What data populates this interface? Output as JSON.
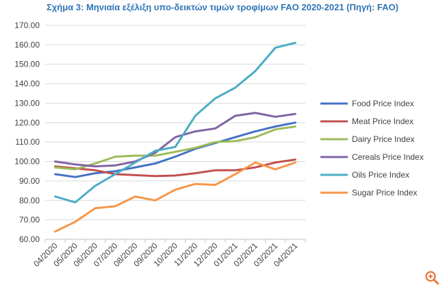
{
  "chart_data": {
    "type": "line",
    "title": "Σχήμα 3: Μηνιαία εξέλιξη υπο-δεικτών τιμών τροφίμων FAO 2020-2021 (Πηγή: FAO)",
    "xlabel": "",
    "ylabel": "",
    "ylim": [
      60,
      170
    ],
    "yticks": [
      "60.00",
      "70.00",
      "80.00",
      "90.00",
      "100.00",
      "110.00",
      "120.00",
      "130.00",
      "140.00",
      "150.00",
      "160.00",
      "170.00"
    ],
    "categories": [
      "04/2020",
      "05/2020",
      "06/2020",
      "07/2020",
      "08/2020",
      "09/2020",
      "10/2020",
      "11/2020",
      "12/2020",
      "01/2021",
      "02/2021",
      "03/2021",
      "04/2021"
    ],
    "grid": true,
    "legend_position": "right",
    "series": [
      {
        "name": "Food Price Index",
        "color": "#4472c4",
        "values": [
          93.5,
          92.0,
          94.0,
          95.0,
          97.0,
          99.0,
          102.5,
          106.5,
          109.5,
          112.5,
          115.5,
          118.0,
          120.0
        ]
      },
      {
        "name": "Meat Price Index",
        "color": "#c0504d",
        "values": [
          97.5,
          96.5,
          95.5,
          93.5,
          93.0,
          92.5,
          92.8,
          94.0,
          95.5,
          95.5,
          97.0,
          99.5,
          101.0
        ]
      },
      {
        "name": "Dairy Price Index",
        "color": "#9bbb59",
        "values": [
          97.0,
          96.0,
          99.0,
          102.5,
          103.0,
          103.0,
          105.0,
          107.0,
          110.0,
          110.5,
          112.5,
          116.5,
          118.0
        ]
      },
      {
        "name": "Cereals Price Index",
        "color": "#8064a2",
        "values": [
          100.0,
          98.5,
          97.5,
          98.0,
          100.0,
          104.5,
          112.5,
          115.5,
          117.0,
          123.5,
          125.0,
          123.0,
          124.5
        ]
      },
      {
        "name": "Oils Price Index",
        "color": "#4bacc6",
        "values": [
          82.0,
          79.0,
          87.5,
          93.5,
          99.5,
          105.5,
          107.5,
          123.5,
          132.5,
          138.0,
          146.5,
          158.5,
          161.0
        ]
      },
      {
        "name": "Sugar Price Index",
        "color": "#f79646",
        "values": [
          64.0,
          69.0,
          76.0,
          77.0,
          82.0,
          80.0,
          85.5,
          88.5,
          88.0,
          93.5,
          99.5,
          96.0,
          99.5
        ]
      }
    ]
  },
  "icons": {
    "zoom": "zoom-in-icon",
    "zoom_color": "#e97132"
  }
}
